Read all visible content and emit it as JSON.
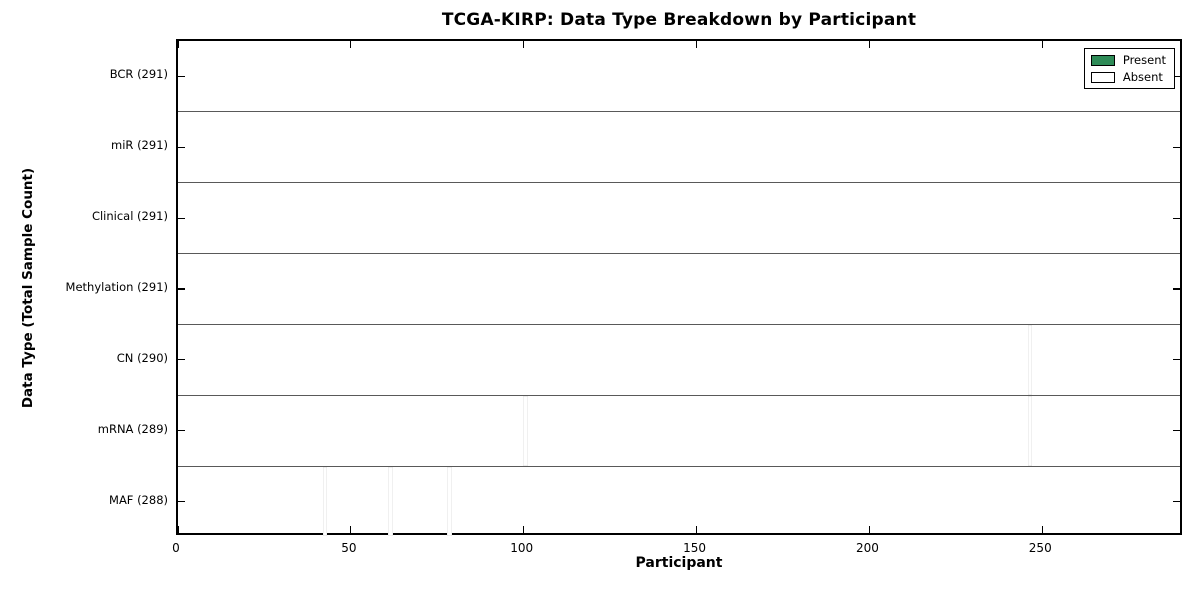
{
  "title": "TCGA-KIRP: Data Type Breakdown by Participant",
  "chart_data": {
    "type": "heatmap",
    "title": "TCGA-KIRP: Data Type Breakdown by Participant",
    "xlabel": "Participant",
    "ylabel": "Data Type (Total Sample Count)",
    "xlim": [
      0,
      291
    ],
    "n_participants": 291,
    "x_ticks": [
      0,
      50,
      100,
      150,
      200,
      250
    ],
    "grid": "row boundaries only",
    "legend_position": "upper right",
    "rows": [
      {
        "label": "BCR",
        "total": 291,
        "display": "BCR (291)",
        "absent_participants": []
      },
      {
        "label": "miR",
        "total": 291,
        "display": "miR (291)",
        "absent_participants": []
      },
      {
        "label": "Clinical",
        "total": 291,
        "display": "Clinical (291)",
        "absent_participants": []
      },
      {
        "label": "Methylation",
        "total": 291,
        "display": "Methylation (291)",
        "absent_participants": []
      },
      {
        "label": "CN",
        "total": 290,
        "display": "CN (290)",
        "absent_participants": [
          246
        ]
      },
      {
        "label": "mRNA",
        "total": 289,
        "display": "mRNA (289)",
        "absent_participants": [
          100,
          246
        ]
      },
      {
        "label": "MAF",
        "total": 288,
        "display": "MAF (288)",
        "absent_participants": [
          42,
          61,
          78
        ]
      }
    ],
    "legend": [
      {
        "label": "Present",
        "color": "#2e8b57"
      },
      {
        "label": "Absent",
        "color": "#ffffff"
      }
    ],
    "colors": {
      "present_fill": "#2e8b57",
      "present_highlight": "#49a375",
      "bar_edge": "#1b5234",
      "absent_fill": "#ffffff",
      "axis": "#000000",
      "background": "#ffffff"
    }
  }
}
